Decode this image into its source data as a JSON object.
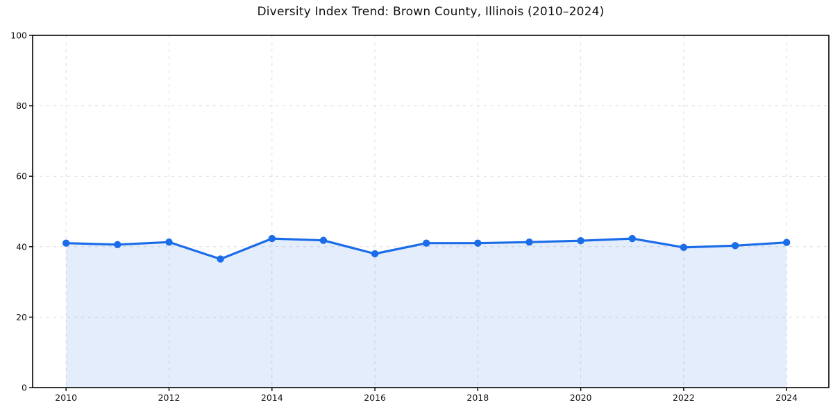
{
  "figure": {
    "background": "#ffffff"
  },
  "chart_data": {
    "type": "line",
    "title": "Diversity Index Trend: Brown County, Illinois (2010–2024)",
    "x": [
      2010,
      2011,
      2012,
      2013,
      2014,
      2015,
      2016,
      2017,
      2018,
      2019,
      2020,
      2021,
      2022,
      2023,
      2024
    ],
    "series": [
      {
        "name": "Diversity Index",
        "values": [
          41.0,
          40.6,
          41.3,
          36.5,
          42.3,
          41.8,
          38.0,
          41.0,
          41.0,
          41.3,
          41.7,
          42.3,
          39.8,
          40.3,
          41.2
        ]
      }
    ],
    "xlabel": "",
    "ylabel": "",
    "xlim": [
      2009.35,
      2024.82
    ],
    "ylim": [
      0,
      100
    ],
    "xticks": [
      2010,
      2012,
      2014,
      2016,
      2018,
      2020,
      2022,
      2024
    ],
    "yticks": [
      0,
      20,
      40,
      60,
      80,
      100
    ],
    "grid": true,
    "grid_style": "dashed",
    "legend": "none",
    "area_fill": true,
    "marker": "circle",
    "colors": {
      "line": "#1a6ce8",
      "marker": "#1a6ce8",
      "fill": "rgba(26, 108, 232, 0.12)",
      "grid": "#dcdcdc",
      "spine": "#000000",
      "tick_label": "#111111",
      "title": "#111111"
    }
  }
}
